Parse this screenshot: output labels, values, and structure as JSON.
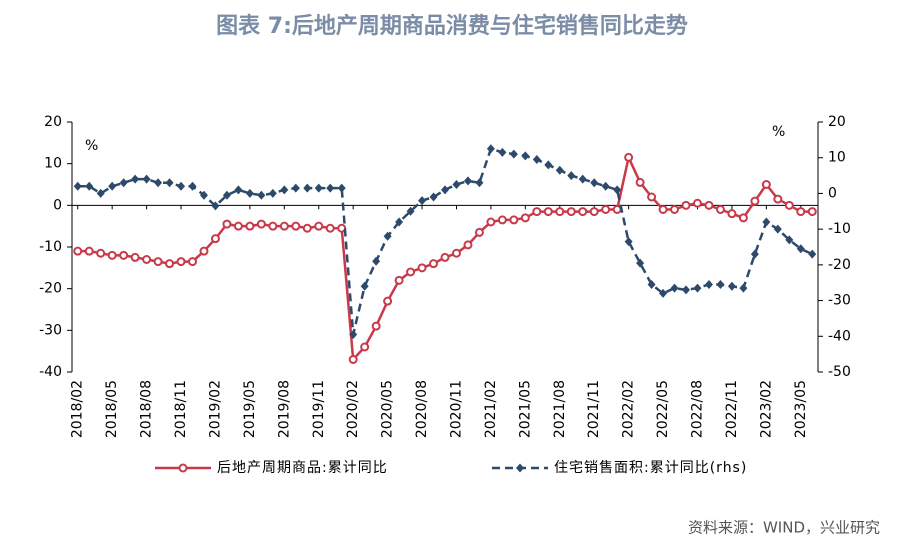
{
  "chart_data": {
    "type": "line",
    "title": "图表 7:后地产周期商品消费与住宅销售同比走势",
    "y_unit": "%",
    "y2_unit": "%",
    "source": "资料来源：WIND，兴业研究",
    "categories": [
      "2018/02",
      null,
      null,
      "2018/05",
      null,
      null,
      "2018/08",
      null,
      null,
      "2018/11",
      null,
      null,
      "2019/02",
      null,
      null,
      "2019/05",
      null,
      null,
      "2019/08",
      null,
      null,
      "2019/11",
      null,
      null,
      "2020/02",
      null,
      null,
      "2020/05",
      null,
      null,
      "2020/08",
      null,
      null,
      "2020/11",
      null,
      null,
      "2021/02",
      null,
      null,
      "2021/05",
      null,
      null,
      "2021/08",
      null,
      null,
      "2021/11",
      null,
      null,
      "2022/02",
      null,
      null,
      "2022/05",
      null,
      null,
      "2022/08",
      null,
      null,
      "2022/11",
      null,
      null,
      "2023/02",
      null,
      null,
      "2023/05",
      null
    ],
    "series": [
      {
        "name": "后地产周期商品:累计同比",
        "color": "#c8394a",
        "marker": "circle",
        "dashed": false,
        "values": [
          -11,
          -11,
          -11.5,
          -12,
          -12,
          -12.5,
          -13,
          -13.5,
          -14,
          -13.5,
          -13.5,
          -11,
          -8,
          -4.5,
          -5,
          -5,
          -4.5,
          -5,
          -5,
          -5,
          -5.5,
          -5,
          -5.5,
          -5.5,
          -37,
          -34,
          -29,
          -23,
          -18,
          -16,
          -15,
          -14,
          -12.5,
          -11.5,
          -9.5,
          -6.5,
          -4,
          -3.5,
          -3.5,
          -3,
          -1.5,
          -1.5,
          -1.5,
          -1.5,
          -1.5,
          -1.5,
          -1,
          -1,
          11.5,
          5.5,
          2,
          -1,
          -1,
          0,
          0.5,
          0,
          -1,
          -2,
          -3,
          1,
          5,
          1.5,
          0,
          -1.5,
          -1.5
        ]
      },
      {
        "name": "住宅销售面积:累计同比(rhs)",
        "color": "#2e4a6b",
        "marker": "diamond",
        "dashed": true,
        "axis": "y2",
        "values": [
          2,
          2,
          0,
          2,
          3,
          4,
          4,
          3,
          3,
          2,
          2,
          -0.5,
          -3.5,
          -0.5,
          1,
          0,
          -0.5,
          0,
          1,
          1.5,
          1.5,
          1.5,
          1.5,
          1.5,
          -39.5,
          -26,
          -19,
          -12,
          -8,
          -5,
          -2,
          -1,
          1,
          2.5,
          3.5,
          3,
          12.5,
          11.5,
          11,
          10.5,
          9.5,
          8,
          6.5,
          5,
          4,
          3,
          2,
          1,
          -13.5,
          -19.5,
          -25.5,
          -28,
          -26.5,
          -27,
          -26.5,
          -25.5,
          -25.5,
          -26,
          -26.5,
          -17,
          -8,
          -10,
          -13,
          -15.5,
          -17
        ]
      }
    ],
    "ylim": [
      -40,
      20
    ],
    "yticks": [
      20,
      10,
      0,
      -10,
      -20,
      -30,
      -40
    ],
    "y2lim": [
      -50,
      20
    ],
    "y2ticks": [
      20,
      10,
      0,
      -10,
      -20,
      -30,
      -40,
      -50
    ]
  }
}
